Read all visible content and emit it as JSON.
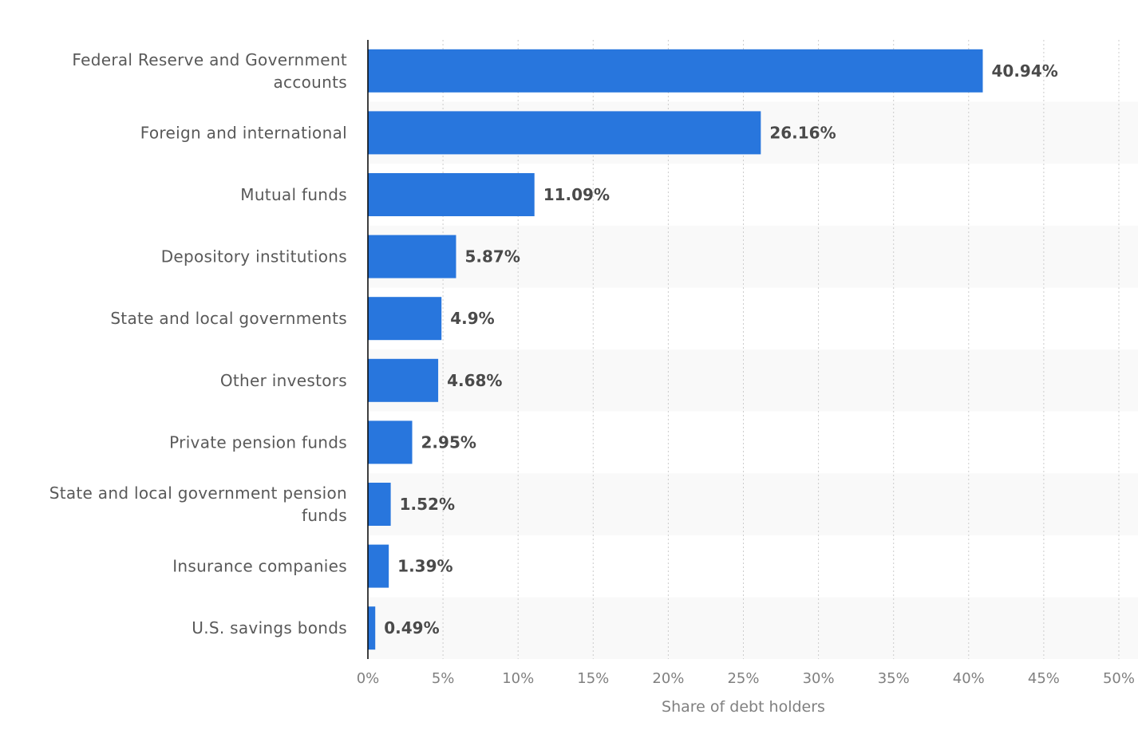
{
  "chart_data": {
    "type": "bar",
    "orientation": "horizontal",
    "categories": [
      "Federal Reserve and Government accounts",
      "Foreign and international",
      "Mutual funds",
      "Depository institutions",
      "State and local governments",
      "Other investors",
      "Private pension funds",
      "State and local government pension funds",
      "Insurance companies",
      "U.S. savings bonds"
    ],
    "values": [
      40.94,
      26.16,
      11.09,
      5.87,
      4.9,
      4.68,
      2.95,
      1.52,
      1.39,
      0.49
    ],
    "value_labels": [
      "40.94%",
      "26.16%",
      "11.09%",
      "5.87%",
      "4.9%",
      "4.68%",
      "2.95%",
      "1.52%",
      "1.39%",
      "0.49%"
    ],
    "xlabel": "Share of debt holders",
    "ylabel": "",
    "title": "",
    "xlim": [
      0,
      50
    ],
    "x_ticks": [
      0,
      5,
      10,
      15,
      20,
      25,
      30,
      35,
      40,
      45,
      50
    ],
    "x_tick_labels": [
      "0%",
      "5%",
      "10%",
      "15%",
      "20%",
      "25%",
      "30%",
      "35%",
      "40%",
      "45%",
      "50%"
    ],
    "grid": "vertical dotted",
    "legend": "none",
    "colors": {
      "bar": "#2876dd",
      "band": "#f9f9f9",
      "grid": "#cccccc",
      "axis": "#000000"
    }
  }
}
